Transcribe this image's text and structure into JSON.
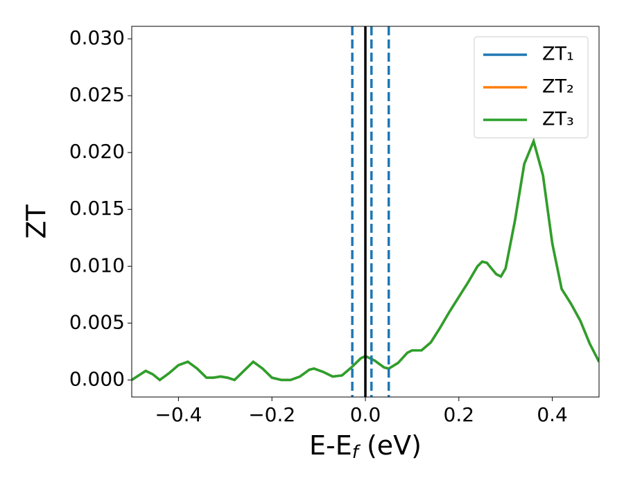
{
  "chart_data": {
    "type": "line",
    "xlabel": {
      "main": "E-E",
      "sub": "f",
      "rest": " (eV)"
    },
    "ylabel": "ZT",
    "x": [
      -0.5,
      -0.485,
      -0.47,
      -0.455,
      -0.44,
      -0.42,
      -0.4,
      -0.38,
      -0.36,
      -0.34,
      -0.325,
      -0.31,
      -0.295,
      -0.28,
      -0.26,
      -0.24,
      -0.22,
      -0.2,
      -0.18,
      -0.16,
      -0.14,
      -0.12,
      -0.11,
      -0.09,
      -0.07,
      -0.05,
      -0.03,
      -0.01,
      0.0,
      0.02,
      0.04,
      0.05,
      0.07,
      0.09,
      0.1,
      0.12,
      0.14,
      0.16,
      0.18,
      0.2,
      0.22,
      0.24,
      0.25,
      0.26,
      0.28,
      0.29,
      0.3,
      0.32,
      0.34,
      0.36,
      0.38,
      0.4,
      0.42,
      0.44,
      0.46,
      0.48,
      0.5
    ],
    "series": [
      {
        "name": "ZT₁",
        "color": "#1f77b4",
        "values": [
          0.0,
          0.0004,
          0.0008,
          0.0005,
          0.0,
          0.0006,
          0.0013,
          0.0016,
          0.001,
          0.0002,
          0.0002,
          0.0003,
          0.0002,
          0.0,
          0.0008,
          0.0016,
          0.001,
          0.0002,
          0.0,
          0.0,
          0.0003,
          0.0009,
          0.001,
          0.0007,
          0.0003,
          0.0004,
          0.0011,
          0.0019,
          0.0021,
          0.0017,
          0.0011,
          0.001,
          0.0015,
          0.0024,
          0.0026,
          0.0026,
          0.0033,
          0.0046,
          0.006,
          0.0073,
          0.0086,
          0.01,
          0.0104,
          0.0103,
          0.0093,
          0.0091,
          0.0098,
          0.014,
          0.019,
          0.021,
          0.018,
          0.012,
          0.008,
          0.0067,
          0.0052,
          0.0032,
          0.0016
        ]
      },
      {
        "name": "ZT₂",
        "color": "#ff7f0e",
        "values": [
          0.0,
          0.0004,
          0.0008,
          0.0005,
          0.0,
          0.0006,
          0.0013,
          0.0016,
          0.001,
          0.0002,
          0.0002,
          0.0003,
          0.0002,
          0.0,
          0.0008,
          0.0016,
          0.001,
          0.0002,
          0.0,
          0.0,
          0.0003,
          0.0009,
          0.001,
          0.0007,
          0.0003,
          0.0004,
          0.0011,
          0.0019,
          0.0021,
          0.0017,
          0.0011,
          0.001,
          0.0015,
          0.0024,
          0.0026,
          0.0026,
          0.0033,
          0.0046,
          0.006,
          0.0073,
          0.0086,
          0.01,
          0.0104,
          0.0103,
          0.0093,
          0.0091,
          0.0098,
          0.014,
          0.019,
          0.021,
          0.018,
          0.012,
          0.008,
          0.0067,
          0.0052,
          0.0032,
          0.0016
        ]
      },
      {
        "name": "ZT₃",
        "color": "#2ca02c",
        "values": [
          0.0,
          0.0004,
          0.0008,
          0.0005,
          0.0,
          0.0006,
          0.0013,
          0.0016,
          0.001,
          0.0002,
          0.0002,
          0.0003,
          0.0002,
          0.0,
          0.0008,
          0.0016,
          0.001,
          0.0002,
          0.0,
          0.0,
          0.0003,
          0.0009,
          0.001,
          0.0007,
          0.0003,
          0.0004,
          0.0011,
          0.0019,
          0.0021,
          0.0017,
          0.0011,
          0.001,
          0.0015,
          0.0024,
          0.0026,
          0.0026,
          0.0033,
          0.0046,
          0.006,
          0.0073,
          0.0086,
          0.01,
          0.0104,
          0.0103,
          0.0093,
          0.0091,
          0.0098,
          0.014,
          0.019,
          0.021,
          0.018,
          0.012,
          0.008,
          0.0067,
          0.0052,
          0.0032,
          0.0016
        ]
      }
    ],
    "vlines": [
      {
        "x": -0.028,
        "color": "#1f77b4",
        "style": "dashed"
      },
      {
        "x": 0.013,
        "color": "#1f77b4",
        "style": "dashed"
      },
      {
        "x": 0.05,
        "color": "#1f77b4",
        "style": "dashed"
      },
      {
        "x": 0.0,
        "color": "#000000",
        "style": "solid"
      }
    ],
    "xlim": [
      -0.5,
      0.5
    ],
    "ylim": [
      -0.0015,
      0.0311
    ],
    "xticks": [
      {
        "value": -0.4,
        "label": "−0.4"
      },
      {
        "value": -0.2,
        "label": "−0.2"
      },
      {
        "value": 0.0,
        "label": "0.0"
      },
      0.2,
      0.4
    ],
    "yticks": [
      {
        "value": 0.0,
        "label": "0.000"
      },
      {
        "value": 0.005,
        "label": "0.005"
      },
      {
        "value": 0.01,
        "label": "0.010"
      },
      {
        "value": 0.015,
        "label": "0.015"
      },
      {
        "value": 0.02,
        "label": "0.020"
      },
      {
        "value": 0.025,
        "label": "0.025"
      },
      {
        "value": 0.03,
        "label": "0.030"
      }
    ],
    "legend": "upper right",
    "grid": false
  }
}
